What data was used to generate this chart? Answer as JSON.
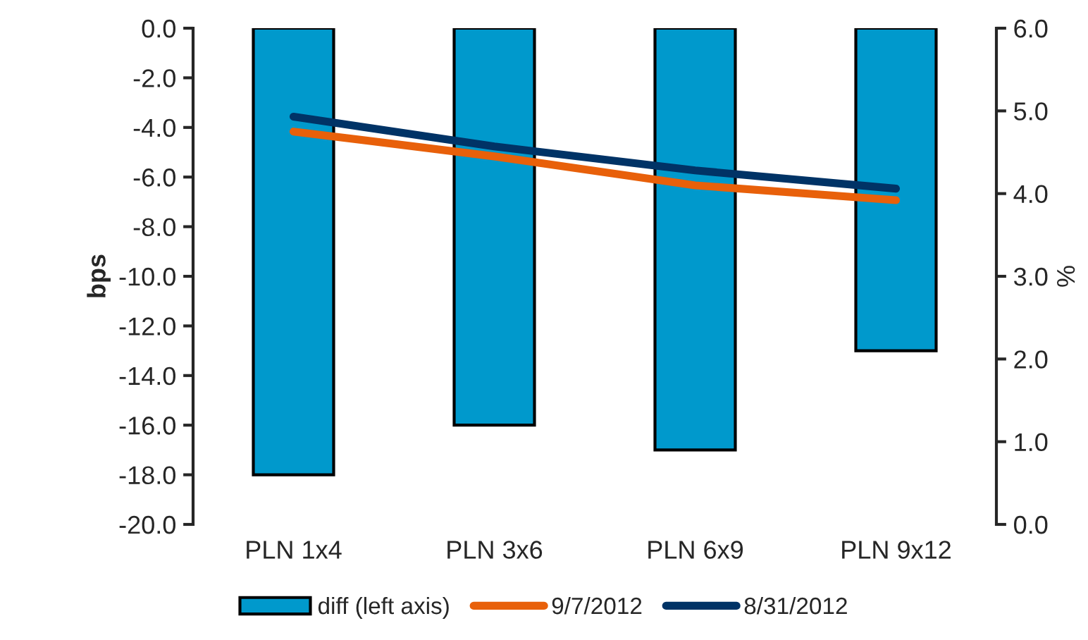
{
  "chart_data": {
    "type": "bar",
    "categories": [
      "PLN 1x4",
      "PLN 3x6",
      "PLN 6x9",
      "PLN 9x12"
    ],
    "series": [
      {
        "name": "diff (left axis)",
        "color": "#0099cc",
        "values": [
          -18,
          -16,
          -17,
          -13
        ]
      },
      {
        "name": "9/7/2012",
        "type": "line",
        "axis": "y2",
        "color": "#e8600a",
        "values": [
          4.75,
          4.45,
          4.1,
          3.92
        ]
      },
      {
        "name": "8/31/2012",
        "type": "line",
        "axis": "y2",
        "color": "#003366",
        "values": [
          4.93,
          4.57,
          4.28,
          4.06
        ]
      }
    ],
    "ylabel": "bps",
    "y2label": "%",
    "ylim": [
      -20,
      0
    ],
    "yticks": [
      {
        "value": -20,
        "label": "-20.0"
      },
      {
        "value": -18,
        "label": "-18.0"
      },
      {
        "value": -16,
        "label": "-16.0"
      },
      {
        "value": -14,
        "label": "-14.0"
      },
      {
        "value": -12,
        "label": "-12.0"
      },
      {
        "value": -10,
        "label": "-10.0"
      },
      {
        "value": -8,
        "label": "-8.0"
      },
      {
        "value": -6,
        "label": "-6.0"
      },
      {
        "value": -4,
        "label": "-4.0"
      },
      {
        "value": -2,
        "label": "-2.0"
      },
      {
        "value": 0,
        "label": "0.0"
      }
    ],
    "y2lim": [
      0,
      6
    ],
    "y2ticks": [
      {
        "value": 0,
        "label": "0.0"
      },
      {
        "value": 1,
        "label": "1.0"
      },
      {
        "value": 2,
        "label": "2.0"
      },
      {
        "value": 3,
        "label": "3.0"
      },
      {
        "value": 4,
        "label": "4.0"
      },
      {
        "value": 5,
        "label": "5.0"
      },
      {
        "value": 6,
        "label": "6.0"
      }
    ],
    "grid": false,
    "legend": "bottom"
  }
}
